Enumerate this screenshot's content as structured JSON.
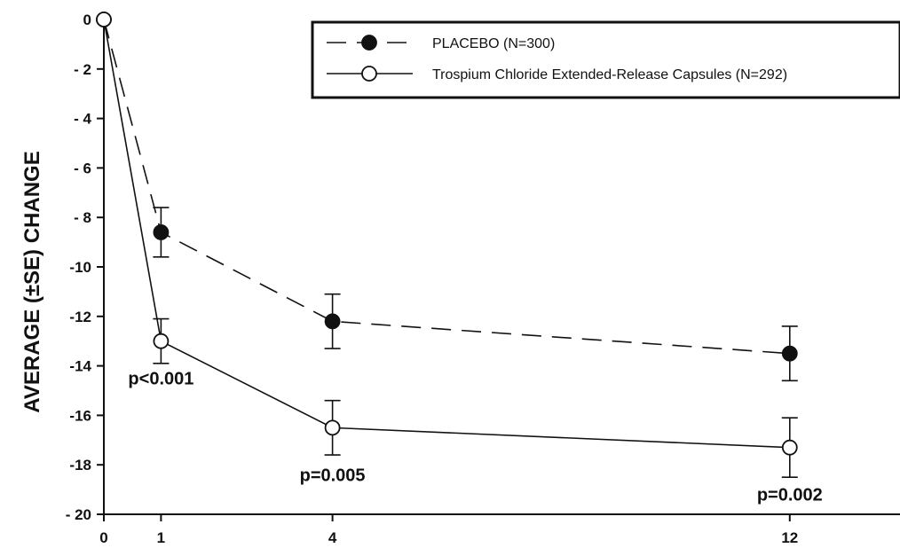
{
  "chart_data": {
    "type": "line",
    "ylabel": "AVERAGE (±SE) CHANGE",
    "xlabel": "",
    "xlim": [
      0,
      14
    ],
    "ylim": [
      -20,
      0
    ],
    "x_ticks": [
      0,
      1,
      4,
      12
    ],
    "x_tick_labels": [
      "0",
      "1",
      "4",
      "12"
    ],
    "y_ticks": [
      0,
      -2,
      -4,
      -6,
      -8,
      -10,
      -12,
      -14,
      -16,
      -18,
      -20
    ],
    "y_tick_labels": [
      "0",
      "- 2",
      "- 4",
      "- 6",
      "- 8",
      "-10",
      "-12",
      "-14",
      "-16",
      "-18",
      "- 20"
    ],
    "grid": false,
    "legend_position": "top-right",
    "series": [
      {
        "name": "PLACEBO (N=300)",
        "style": "dashed",
        "marker": "filled-circle",
        "x": [
          0,
          1,
          4,
          12
        ],
        "y": [
          0,
          -8.6,
          -12.2,
          -13.5
        ],
        "se": [
          0,
          1.0,
          1.1,
          1.1
        ]
      },
      {
        "name": "Trospium Chloride Extended-Release Capsules (N=292)",
        "style": "solid",
        "marker": "open-circle",
        "x": [
          0,
          1,
          4,
          12
        ],
        "y": [
          0,
          -13.0,
          -16.5,
          -17.3
        ],
        "se": [
          0,
          0.9,
          1.1,
          1.2
        ]
      }
    ],
    "annotations": [
      {
        "text": "p<0.001",
        "x": 1,
        "y": -14.5
      },
      {
        "text": "p=0.005",
        "x": 4,
        "y": -18.4
      },
      {
        "text": "p=0.002",
        "x": 12,
        "y": -19.2
      }
    ]
  }
}
